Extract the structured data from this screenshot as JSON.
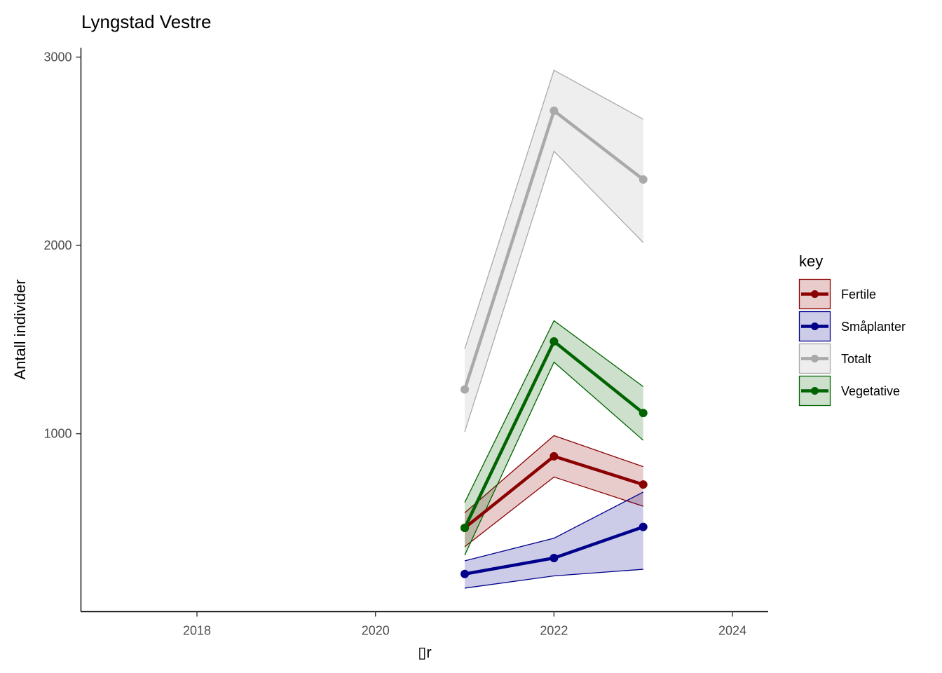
{
  "chart_data": {
    "type": "line",
    "title": "Lyngstad Vestre",
    "xlabel": "▯r",
    "ylabel": "Antall individer",
    "xlim": [
      2016.7,
      2024.4
    ],
    "ylim": [
      55,
      3050
    ],
    "x_ticks": [
      2018,
      2020,
      2022,
      2024
    ],
    "y_ticks": [
      1000,
      2000,
      3000
    ],
    "grid": false,
    "legend": {
      "title": "key",
      "placement": "right"
    },
    "x": [
      2021,
      2022,
      2023
    ],
    "series": [
      {
        "name": "Fertile",
        "color": "#8b0000",
        "fill": "#8b0000",
        "values": [
          500,
          880,
          730
        ],
        "lower": [
          400,
          770,
          615
        ],
        "upper": [
          580,
          990,
          825
        ]
      },
      {
        "name": "Småplanter",
        "color": "#00008b",
        "fill": "#00008b",
        "values": [
          255,
          340,
          505
        ],
        "lower": [
          180,
          245,
          280
        ],
        "upper": [
          325,
          445,
          690
        ]
      },
      {
        "name": "Totalt",
        "color": "#a9a9a9",
        "fill": "#a9a9a9",
        "values": [
          1235,
          2715,
          2350
        ],
        "lower": [
          1010,
          2500,
          2015
        ],
        "upper": [
          1450,
          2930,
          2670
        ]
      },
      {
        "name": "Vegetative",
        "color": "#006400",
        "fill": "#006400",
        "values": [
          500,
          1490,
          1110
        ],
        "lower": [
          355,
          1380,
          965
        ],
        "upper": [
          635,
          1600,
          1250
        ]
      }
    ]
  }
}
